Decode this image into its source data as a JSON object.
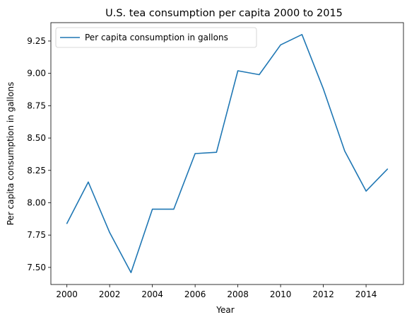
{
  "chart_data": {
    "type": "line",
    "title": "U.S. tea consumption per capita 2000 to 2015",
    "xlabel": "Year",
    "ylabel": "Per capita consumption in gallons",
    "x": [
      2000,
      2001,
      2002,
      2003,
      2004,
      2005,
      2006,
      2007,
      2008,
      2009,
      2010,
      2011,
      2012,
      2013,
      2014,
      2015
    ],
    "series": [
      {
        "name": "Per capita consumption in gallons",
        "color": "#1f77b4",
        "values": [
          7.84,
          8.16,
          7.77,
          7.46,
          7.95,
          7.95,
          8.38,
          8.39,
          9.02,
          8.99,
          9.22,
          9.3,
          8.88,
          8.4,
          8.09,
          8.26
        ]
      }
    ],
    "xlim": [
      1999.25,
      2015.75
    ],
    "ylim": [
      7.368,
      9.392
    ],
    "xticks": [
      2000,
      2002,
      2004,
      2006,
      2008,
      2010,
      2012,
      2014
    ],
    "xtick_labels": [
      "2000",
      "2002",
      "2004",
      "2006",
      "2008",
      "2010",
      "2012",
      "2014"
    ],
    "yticks": [
      7.5,
      7.75,
      8.0,
      8.25,
      8.5,
      8.75,
      9.0,
      9.25
    ],
    "ytick_labels": [
      "7.50",
      "7.75",
      "8.00",
      "8.25",
      "8.50",
      "8.75",
      "9.00",
      "9.25"
    ],
    "grid": false,
    "legend": "upper left"
  }
}
